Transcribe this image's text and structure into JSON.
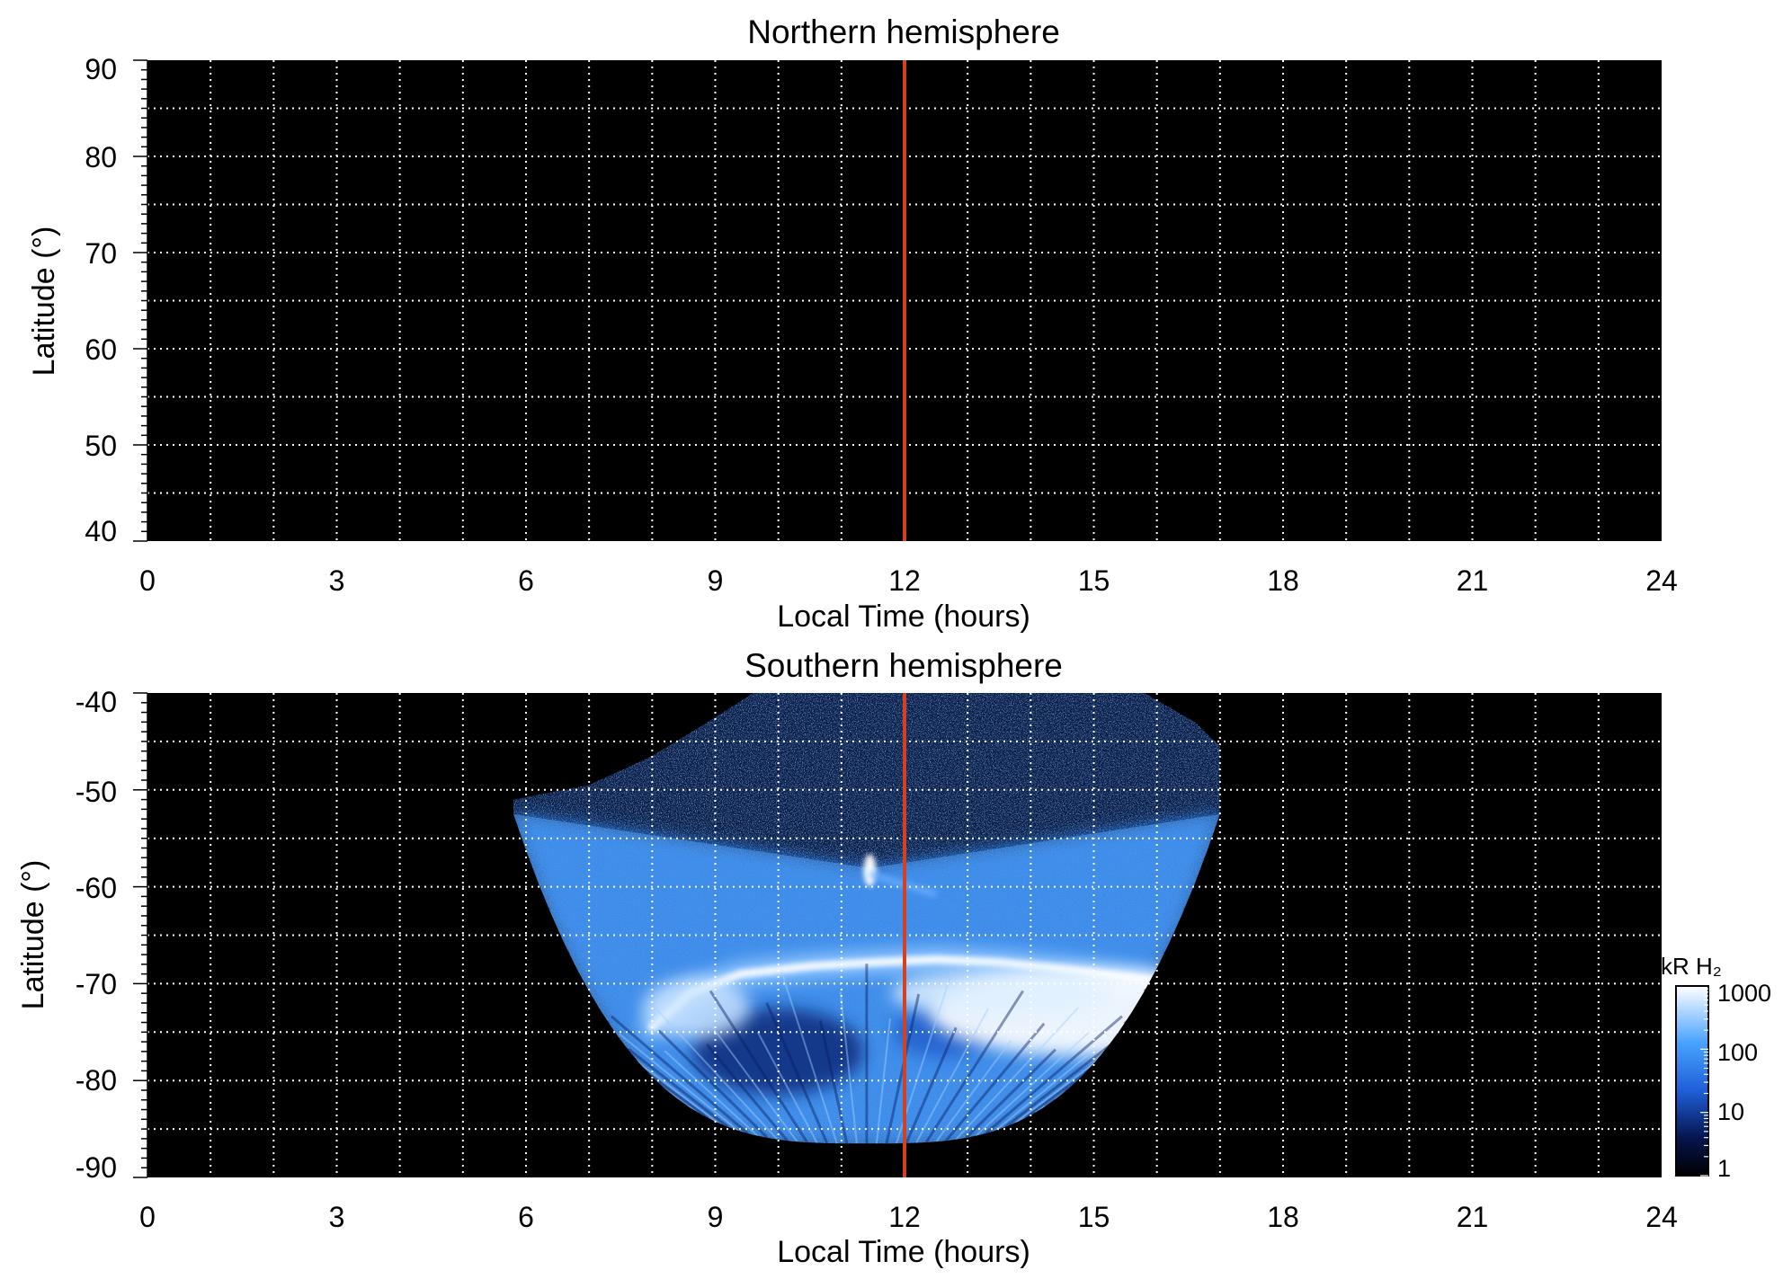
{
  "figure": {
    "panels": [
      {
        "id": "north",
        "title": "Northern hemisphere",
        "xlabel": "Local Time (hours)",
        "ylabel": "Latitude (°)",
        "xticks": [
          "0",
          "3",
          "6",
          "9",
          "12",
          "15",
          "18",
          "21",
          "24"
        ],
        "yticks": [
          "90",
          "80",
          "70",
          "60",
          "50",
          "40"
        ]
      },
      {
        "id": "south",
        "title": "Southern hemisphere",
        "xlabel": "Local Time (hours)",
        "ylabel": "Latitude (°)",
        "xticks": [
          "0",
          "3",
          "6",
          "9",
          "12",
          "15",
          "18",
          "21",
          "24"
        ],
        "yticks": [
          "-40",
          "-50",
          "-60",
          "-70",
          "-80",
          "-90"
        ]
      }
    ],
    "colorbar": {
      "label": "kR H₂",
      "ticks": [
        "1000",
        "100",
        "10",
        "1"
      ]
    }
  },
  "chart_data": [
    {
      "type": "heatmap",
      "title": "Northern hemisphere",
      "xlabel": "Local Time (hours)",
      "ylabel": "Latitude (°)",
      "xlim": [
        0,
        24
      ],
      "ylim": [
        40,
        90
      ],
      "xticks": [
        0,
        3,
        6,
        9,
        12,
        15,
        18,
        21,
        24
      ],
      "yticks": [
        40,
        50,
        60,
        70,
        80,
        90
      ],
      "grid": true,
      "background": "#000000",
      "emission": "none",
      "reference_line": {
        "x": 12,
        "color": "#d6401f"
      }
    },
    {
      "type": "heatmap",
      "title": "Southern hemisphere",
      "xlabel": "Local Time (hours)",
      "ylabel": "Latitude (°)",
      "xlim": [
        0,
        24
      ],
      "ylim": [
        -90,
        -40
      ],
      "xticks": [
        0,
        3,
        6,
        9,
        12,
        15,
        18,
        21,
        24
      ],
      "yticks": [
        -90,
        -80,
        -70,
        -60,
        -50,
        -40
      ],
      "grid": true,
      "background": "#000000",
      "reference_line": {
        "x": 12,
        "color": "#d6401f"
      },
      "coverage": {
        "lt_range": [
          5.8,
          17.0
        ],
        "lat_range": [
          -86.5,
          -40
        ],
        "upper_boundary": [
          [
            5.8,
            -51
          ],
          [
            7.0,
            -49.5
          ],
          [
            8.0,
            -46.5
          ],
          [
            9.0,
            -42.5
          ],
          [
            9.6,
            -40
          ],
          [
            15.8,
            -40
          ],
          [
            16.6,
            -43
          ],
          [
            17.0,
            -45.5
          ]
        ]
      },
      "features": [
        {
          "name": "main auroral oval",
          "lt_range": [
            8.5,
            16.5
          ],
          "lat_range": [
            -72,
            -66
          ],
          "intensity_kR": 1000
        },
        {
          "name": "dawn arc",
          "lt_range": [
            8.0,
            10.0
          ],
          "lat_range": [
            -77,
            -70
          ],
          "intensity_kR": 800
        },
        {
          "name": "bright spot",
          "lt": 11.4,
          "lat": -58.5,
          "intensity_kR": 500
        },
        {
          "name": "afternoon bright region",
          "lt_range": [
            13.0,
            16.5
          ],
          "lat_range": [
            -77,
            -69
          ],
          "intensity_kR": 1000
        }
      ],
      "colorbar": {
        "label": "kR H₂",
        "scale": "log",
        "range": [
          1,
          1000
        ],
        "ticks": [
          1,
          10,
          100,
          1000
        ],
        "colors": [
          "#000000",
          "#06154f",
          "#1f5fd9",
          "#48a2ff",
          "#ffffff"
        ]
      }
    }
  ]
}
